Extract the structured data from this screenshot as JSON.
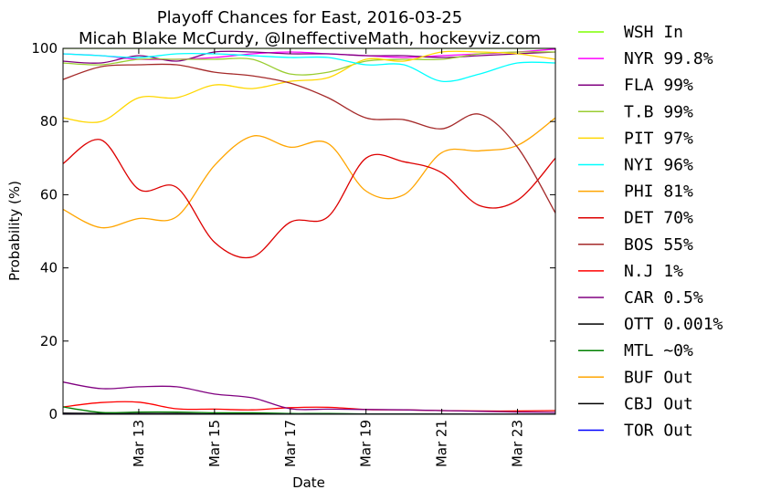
{
  "chart_data": {
    "type": "line",
    "title": "Playoff Chances for East, 2016-03-25",
    "subtitle": "Micah Blake McCurdy, @IneffectiveMath, hockeyviz.com",
    "xlabel": "Date",
    "ylabel": "Probability (%)",
    "ylim": [
      0,
      100
    ],
    "xlim": [
      "2016-03-11",
      "2016-03-24"
    ],
    "x_ticks": [
      "Mar 13",
      "Mar 15",
      "Mar 17",
      "Mar 19",
      "Mar 21",
      "Mar 23"
    ],
    "y_ticks": [
      "0",
      "20",
      "40",
      "60",
      "80",
      "100"
    ],
    "grid": false,
    "legend_position": "outside-right",
    "x": [
      "2016-03-11",
      "2016-03-12",
      "2016-03-13",
      "2016-03-14",
      "2016-03-15",
      "2016-03-16",
      "2016-03-17",
      "2016-03-18",
      "2016-03-19",
      "2016-03-20",
      "2016-03-21",
      "2016-03-22",
      "2016-03-23",
      "2016-03-24"
    ],
    "series": [
      {
        "name": "WSH",
        "label": "In",
        "color": "#7fff00",
        "values": [
          100,
          100,
          100,
          100,
          100,
          100,
          100,
          100,
          100,
          100,
          100,
          100,
          100,
          100
        ]
      },
      {
        "name": "NYR",
        "label": "99.8%",
        "color": "#ff00ff",
        "values": [
          98.5,
          98,
          97,
          97,
          97.5,
          98.5,
          99,
          98.5,
          98,
          97.5,
          98,
          98.5,
          99,
          99.8
        ]
      },
      {
        "name": "FLA",
        "label": "99%",
        "color": "#800080",
        "values": [
          96.5,
          96,
          98,
          96.5,
          99,
          99,
          98.5,
          98.5,
          98,
          98,
          97.5,
          98,
          98.5,
          99
        ]
      },
      {
        "name": "T.B",
        "label": "99%",
        "color": "#9acd32",
        "values": [
          96,
          95.5,
          97,
          97,
          97,
          97,
          93,
          93.5,
          96.5,
          97,
          97,
          98.5,
          99,
          99
        ]
      },
      {
        "name": "PIT",
        "label": "97%",
        "color": "#ffd700",
        "values": [
          81,
          80,
          86.5,
          86.5,
          90,
          89,
          91,
          92,
          97,
          96.5,
          99,
          99,
          98.5,
          97
        ]
      },
      {
        "name": "NYI",
        "label": "96%",
        "color": "#00ffff",
        "values": [
          98.5,
          98,
          97.5,
          98.5,
          98.5,
          98,
          97.5,
          97.5,
          95.5,
          95.5,
          91,
          93,
          96,
          96
        ]
      },
      {
        "name": "PHI",
        "label": "81%",
        "color": "#ffa500",
        "values": [
          56,
          51,
          53.5,
          54,
          68,
          76,
          73,
          74,
          61,
          60,
          71.5,
          72,
          73.5,
          81
        ]
      },
      {
        "name": "DET",
        "label": "70%",
        "color": "#dd0000",
        "values": [
          68.5,
          75,
          61.5,
          62,
          47,
          43,
          52.5,
          54,
          70,
          69,
          66,
          57,
          58.5,
          70
        ]
      },
      {
        "name": "BOS",
        "label": "55%",
        "color": "#a52a2a",
        "values": [
          91.5,
          95,
          95.5,
          95.5,
          93.5,
          92.5,
          90.5,
          86.5,
          81,
          80.5,
          78,
          82,
          73,
          55
        ]
      },
      {
        "name": "N.J",
        "label": "1%",
        "color": "#ff0000",
        "values": [
          2,
          3.2,
          3.3,
          1.5,
          1.4,
          1.2,
          1.8,
          1.9,
          1.3,
          1.2,
          1,
          0.9,
          0.9,
          1
        ]
      },
      {
        "name": "CAR",
        "label": "0.5%",
        "color": "#800080",
        "values": [
          8.8,
          7,
          7.5,
          7.5,
          5.5,
          4.5,
          1.5,
          1.4,
          1.3,
          1.2,
          1,
          0.8,
          0.6,
          0.5
        ]
      },
      {
        "name": "OTT",
        "label": "0.001%",
        "color": "#000000",
        "values": [
          0.3,
          0.2,
          0.2,
          0.2,
          0.1,
          0.1,
          0.1,
          0.1,
          0.05,
          0.05,
          0.02,
          0.01,
          0.005,
          0.001
        ]
      },
      {
        "name": "MTL",
        "label": "~0%",
        "color": "#008000",
        "values": [
          2,
          0.5,
          0.6,
          0.6,
          0.4,
          0.4,
          0.2,
          0.2,
          0.1,
          0.1,
          0.05,
          0.02,
          0.01,
          0
        ]
      },
      {
        "name": "BUF",
        "label": "Out",
        "color": "#ffa500",
        "values": [
          0,
          0,
          0,
          0,
          0,
          0,
          0,
          0,
          0,
          0,
          0,
          0,
          0,
          0
        ]
      },
      {
        "name": "CBJ",
        "label": "Out",
        "color": "#000000",
        "values": [
          0,
          0,
          0,
          0,
          0,
          0,
          0,
          0,
          0,
          0,
          0,
          0,
          0,
          0
        ]
      },
      {
        "name": "TOR",
        "label": "Out",
        "color": "#0000ff",
        "values": [
          0,
          0,
          0,
          0,
          0,
          0,
          0,
          0,
          0,
          0,
          0,
          0,
          0,
          0
        ]
      }
    ]
  }
}
